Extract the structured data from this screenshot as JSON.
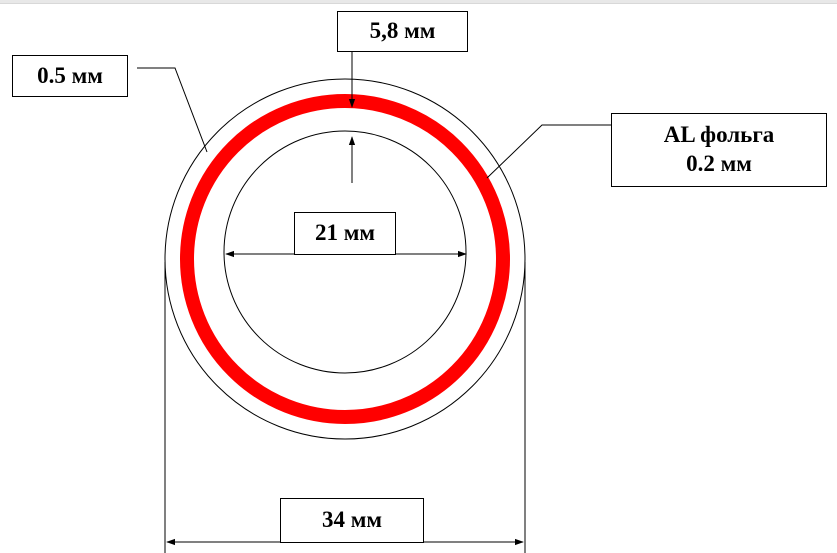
{
  "labels": {
    "wall_thickness": "5,8 мм",
    "outer_layer": "0.5 мм",
    "foil_line1": "AL фольга",
    "foil_line2": "0.2 мм",
    "inner_diameter": "21 мм",
    "outer_diameter": "34 мм"
  },
  "colors": {
    "foil_layer": "#ff0000",
    "lines": "#000000",
    "background": "#ffffff"
  }
}
